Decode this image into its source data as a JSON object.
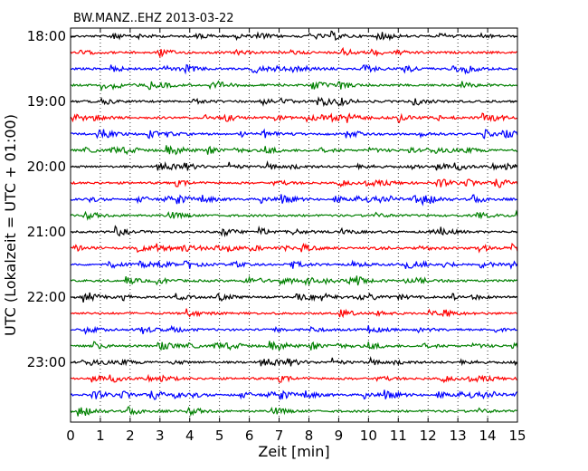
{
  "chart_data": {
    "type": "line",
    "title": "BW.MANZ..EHZ 2013-03-22",
    "xlabel": "Zeit  [min]",
    "ylabel": "UTC (Lokalzeit = UTC + 01:00)",
    "xlim": [
      0,
      15
    ],
    "x_ticks": [
      "0",
      "1",
      "2",
      "3",
      "4",
      "5",
      "6",
      "7",
      "8",
      "9",
      "10",
      "11",
      "12",
      "13",
      "14",
      "15"
    ],
    "y_tick_labels": [
      "18:00",
      "19:00",
      "20:00",
      "21:00",
      "22:00",
      "23:00"
    ],
    "grid": "vertical dotted",
    "trace_colors": [
      "#000000",
      "#ff0000",
      "#0000ff",
      "#008000"
    ],
    "traces_per_hour": 4,
    "trace_duration_min": 15,
    "series": [
      {
        "start": "18:00"
      },
      {
        "start": "18:15"
      },
      {
        "start": "18:30"
      },
      {
        "start": "18:45"
      },
      {
        "start": "19:00"
      },
      {
        "start": "19:15"
      },
      {
        "start": "19:30"
      },
      {
        "start": "19:45"
      },
      {
        "start": "20:00"
      },
      {
        "start": "20:15"
      },
      {
        "start": "20:30"
      },
      {
        "start": "20:45"
      },
      {
        "start": "21:00"
      },
      {
        "start": "21:15"
      },
      {
        "start": "21:30"
      },
      {
        "start": "21:45"
      },
      {
        "start": "22:00"
      },
      {
        "start": "22:15"
      },
      {
        "start": "22:30"
      },
      {
        "start": "22:45"
      },
      {
        "start": "23:00"
      },
      {
        "start": "23:15"
      },
      {
        "start": "23:30"
      },
      {
        "start": "23:45"
      }
    ]
  }
}
